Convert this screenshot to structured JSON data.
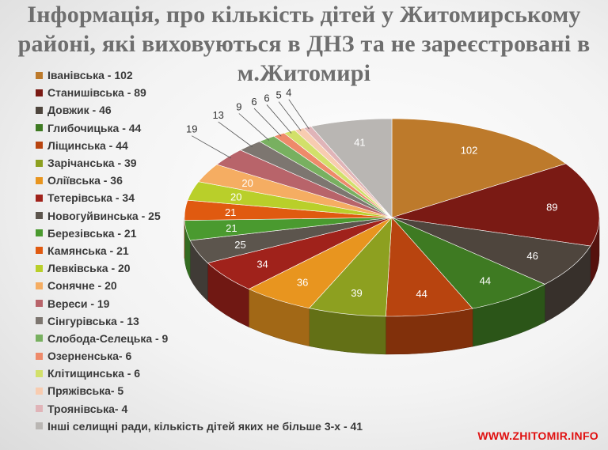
{
  "title_lines": [
    "Інформація, про кількість дітей у Житомирському",
    "районі, які виховуються в ДНЗ та не зареєстровані в",
    "м.Житомирі"
  ],
  "watermark": "WWW.ZHITOMIR.INFO",
  "chart_data": {
    "type": "pie",
    "title": "Інформація, про кількість дітей у Житомирському районі, які виховуються в ДНЗ та не зареєстровані в м.Житомирі",
    "legend_position": "left",
    "slices": [
      {
        "legend": "Іванівська - 102",
        "label": "102",
        "value": 102,
        "color": "#bd7a2b"
      },
      {
        "legend": "Станишівська - 89",
        "label": "89",
        "value": 89,
        "color": "#7a1a14"
      },
      {
        "legend": "Довжик - 46",
        "label": "46",
        "value": 46,
        "color": "#4e453d"
      },
      {
        "legend": "Глибочицька - 44",
        "label": "44",
        "value": 44,
        "color": "#3e7a22"
      },
      {
        "legend": "Ліщинська - 44",
        "label": "44",
        "value": 44,
        "color": "#b8440f"
      },
      {
        "legend": "Зарічанська - 39",
        "label": "39",
        "value": 39,
        "color": "#8da020"
      },
      {
        "legend": "Оліївська - 36",
        "label": "36",
        "value": 36,
        "color": "#e8951f"
      },
      {
        "legend": "Тетерівська - 34",
        "label": "34",
        "value": 34,
        "color": "#a0221b"
      },
      {
        "legend": "Новогуйвинська - 25",
        "label": "25",
        "value": 25,
        "color": "#5c554d"
      },
      {
        "legend": "Березівська - 21",
        "label": "21",
        "value": 21,
        "color": "#4a9a2f"
      },
      {
        "legend": "Камянська - 21",
        "label": "21",
        "value": 21,
        "color": "#e05a10"
      },
      {
        "legend": "Левківська - 20",
        "label": "20",
        "value": 20,
        "color": "#b9cf2a"
      },
      {
        "legend": "Сонячне - 20",
        "label": "20",
        "value": 20,
        "color": "#f5ad62"
      },
      {
        "legend": "Вереси - 19",
        "label": "19",
        "value": 19,
        "color": "#b8646a"
      },
      {
        "legend": "Сінгурівська - 13",
        "label": "13",
        "value": 13,
        "color": "#7d7670"
      },
      {
        "legend": "Слобода-Селецька - 9",
        "label": "9",
        "value": 9,
        "color": "#78b060"
      },
      {
        "legend": "Озерненська- 6",
        "label": "6",
        "value": 6,
        "color": "#ee8a6a"
      },
      {
        "legend": "Клітищинська - 6",
        "label": "6",
        "value": 6,
        "color": "#d2e06a"
      },
      {
        "legend": "Пряжівська- 5",
        "label": "5",
        "value": 5,
        "color": "#f8ccb0"
      },
      {
        "legend": "Троянівська- 4",
        "label": "4",
        "value": 4,
        "color": "#e0b4b8"
      },
      {
        "legend": "Інші селищні ради, кількість дітей яких не більше 3-х - 41",
        "label": "41",
        "value": 41,
        "color": "#b9b6b3"
      }
    ]
  }
}
